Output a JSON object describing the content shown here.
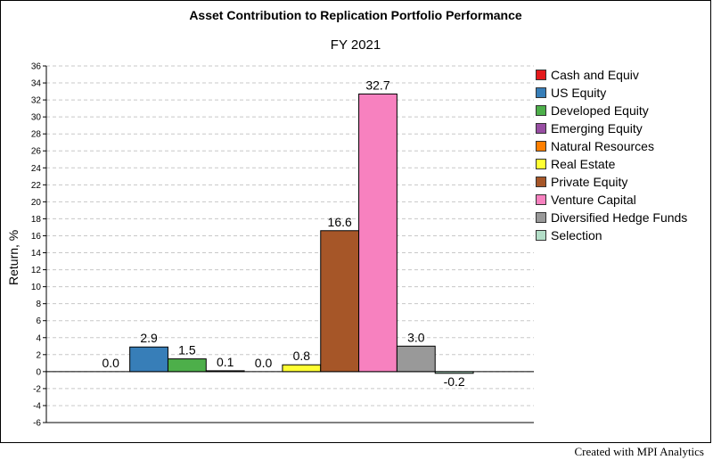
{
  "chart_data": {
    "type": "bar",
    "title": "Asset Contribution to Replication Portfolio Performance",
    "subtitle": "FY 2021",
    "ylabel": "Return, %",
    "xlabel": "",
    "ylim": [
      -6,
      36
    ],
    "ytick_step": 2,
    "grid": true,
    "legend_position": "right",
    "series": [
      {
        "name": "Cash and Equiv",
        "value": 0.0,
        "label": "0.0",
        "color": "#e41a1c"
      },
      {
        "name": "US Equity",
        "value": 2.9,
        "label": "2.9",
        "color": "#377eb8"
      },
      {
        "name": "Developed Equity",
        "value": 1.5,
        "label": "1.5",
        "color": "#4daf4a"
      },
      {
        "name": "Emerging Equity",
        "value": 0.1,
        "label": "0.1",
        "color": "#984ea3"
      },
      {
        "name": "Natural Resources",
        "value": 0.0,
        "label": "0.0",
        "color": "#ff7f00"
      },
      {
        "name": "Real Estate",
        "value": 0.8,
        "label": "0.8",
        "color": "#ffff33"
      },
      {
        "name": "Private Equity",
        "value": 16.6,
        "label": "16.6",
        "color": "#a65628"
      },
      {
        "name": "Venture Capital",
        "value": 32.7,
        "label": "32.7",
        "color": "#f781bf"
      },
      {
        "name": "Diversified Hedge Funds",
        "value": 3.0,
        "label": "3.0",
        "color": "#999999"
      },
      {
        "name": "Selection",
        "value": -0.2,
        "label": "-0.2",
        "color": "#b3dec8"
      }
    ]
  },
  "footer": {
    "credit": "Created with MPI Analytics"
  }
}
